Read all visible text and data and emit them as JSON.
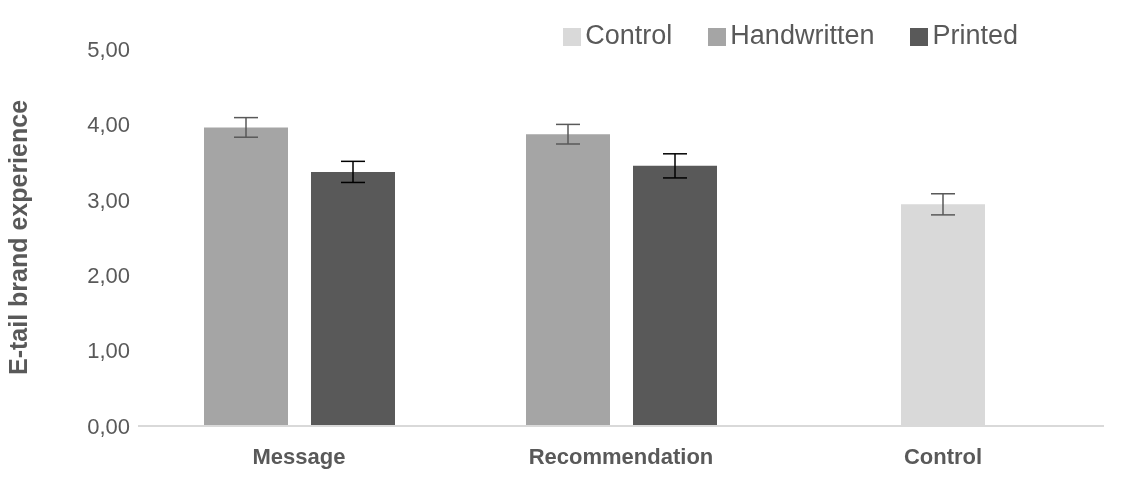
{
  "chart_data": {
    "type": "bar",
    "ylabel": "E-tail brand experience",
    "categories": [
      "Message",
      "Recommendation",
      "Control"
    ],
    "series": [
      {
        "name": "Handwritten",
        "color": "#a5a5a5",
        "values": [
          3.96,
          3.87,
          null
        ],
        "errors": [
          0.13,
          0.13,
          null
        ]
      },
      {
        "name": "Printed",
        "color": "#595959",
        "values": [
          3.37,
          3.45,
          null
        ],
        "errors": [
          0.14,
          0.16,
          null
        ]
      },
      {
        "name": "Control",
        "color": "#d9d9d9",
        "values": [
          null,
          null,
          2.94
        ],
        "errors": [
          null,
          null,
          0.14
        ]
      }
    ],
    "ylim": [
      0,
      5
    ],
    "yticks": [
      {
        "value": 0,
        "label": "0,00"
      },
      {
        "value": 1,
        "label": "1,00"
      },
      {
        "value": 2,
        "label": "2,00"
      },
      {
        "value": 3,
        "label": "3,00"
      },
      {
        "value": 4,
        "label": "4,00"
      },
      {
        "value": 5,
        "label": "5,00"
      }
    ],
    "grid": false,
    "legend": "top right"
  }
}
